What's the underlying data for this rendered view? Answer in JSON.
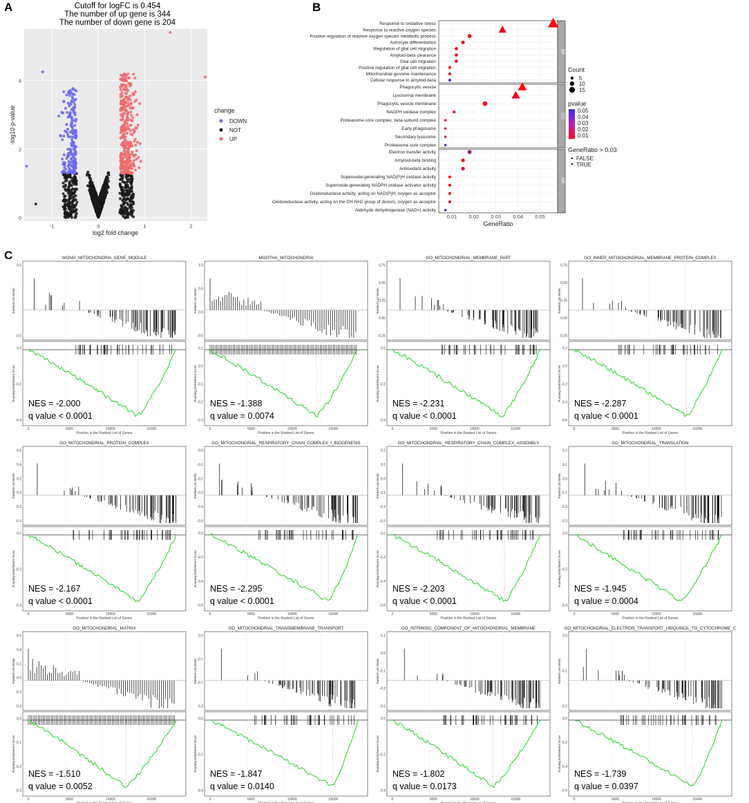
{
  "panel_labels": {
    "a": "A",
    "b": "B",
    "c": "C"
  },
  "volcano": {
    "title_lines": [
      "Cutoff for logFC is 0.454",
      "The number of up gene is 344",
      "The number of down gene is 204"
    ],
    "xlabel": "log2 fold change",
    "ylabel": "-log10 p-value",
    "legend_title": "change",
    "legend_items": [
      {
        "label": "DOWN",
        "color": "#6b6bf0"
      },
      {
        "label": "NOT",
        "color": "#222222"
      },
      {
        "label": "UP",
        "color": "#f06b6b"
      }
    ],
    "xticks": [
      "-1",
      "0",
      "1",
      "2"
    ],
    "yticks": [
      "0",
      "2",
      "4"
    ]
  },
  "dotplot": {
    "xlabel": "GeneRatio",
    "xticks": [
      "0.01",
      "0.02",
      "0.03",
      "0.04",
      "0.05"
    ],
    "facets": [
      "BP",
      "CC",
      "MF"
    ],
    "legend": {
      "count_title": "Count",
      "count_items": [
        "5",
        "10",
        "15"
      ],
      "pvalue_title": "pvalue",
      "pvalue_ticks": [
        "0.05",
        "0.04",
        "0.03",
        "0.02",
        "0.01"
      ],
      "shape_title": "GeneRatio > 0.03",
      "shape_items": [
        "FALSE",
        "TRUE"
      ]
    }
  },
  "gsea_axes": {
    "xlabel": "Position in the Ranked List of Genes",
    "ylabel_top": "Ranked List Metric",
    "ylabel_bottom": "Running Enrichment Score"
  },
  "chart_data": [
    {
      "type": "scatter",
      "title": "Cutoff for logFC is 0.454 / The number of up gene is 344 / The number of down gene is 204",
      "xlabel": "log2 fold change",
      "ylabel": "-log10 p-value",
      "xlim": [
        -1.6,
        2.35
      ],
      "ylim": [
        -0.1,
        5.5
      ],
      "series": [
        {
          "name": "DOWN",
          "color": "#6b6bf0",
          "count": 204
        },
        {
          "name": "NOT",
          "color": "#222222"
        },
        {
          "name": "UP",
          "color": "#f06b6b",
          "count": 344
        }
      ],
      "cutoff_logfc": 0.454
    },
    {
      "type": "scatter",
      "xlabel": "GeneRatio",
      "xlim": [
        0.004,
        0.058
      ],
      "facets": [
        {
          "name": "BP",
          "terms": [
            {
              "term": "Response to oxidative stress",
              "x": 0.056,
              "count": 15,
              "p": 0.005,
              "gt": true
            },
            {
              "term": "Response to reactive oxygen species",
              "x": 0.033,
              "count": 10,
              "p": 0.01,
              "gt": true
            },
            {
              "term": "Positive regulation of reactive oxygen species metabolic process",
              "x": 0.018,
              "count": 6,
              "p": 0.008,
              "gt": false
            },
            {
              "term": "Astrocyte differentiation",
              "x": 0.015,
              "count": 5,
              "p": 0.008,
              "gt": false
            },
            {
              "term": "Regulation of glial cell migration",
              "x": 0.012,
              "count": 4,
              "p": 0.008,
              "gt": false
            },
            {
              "term": "Amyloid-beta clearance",
              "x": 0.012,
              "count": 4,
              "p": 0.01,
              "gt": false
            },
            {
              "term": "Glial cell migration",
              "x": 0.012,
              "count": 4,
              "p": 0.01,
              "gt": false
            },
            {
              "term": "Positive regulation of glial cell migration",
              "x": 0.009,
              "count": 3,
              "p": 0.008,
              "gt": false
            },
            {
              "term": "Mitochondrial genome maintenance",
              "x": 0.009,
              "count": 3,
              "p": 0.01,
              "gt": false
            },
            {
              "term": "Cellular response to amyloid-beta",
              "x": 0.009,
              "count": 3,
              "p": 0.045,
              "gt": false
            }
          ]
        },
        {
          "name": "CC",
          "terms": [
            {
              "term": "Phagocytic vesicle",
              "x": 0.042,
              "count": 12,
              "p": 0.005,
              "gt": true
            },
            {
              "term": "Lysosomal membrane",
              "x": 0.039,
              "count": 11,
              "p": 0.01,
              "gt": true
            },
            {
              "term": "Phagocytic vesicle membrane",
              "x": 0.025,
              "count": 8,
              "p": 0.006,
              "gt": false
            },
            {
              "term": "NADPH oxidase complex",
              "x": 0.011,
              "count": 3,
              "p": 0.01,
              "gt": false
            },
            {
              "term": "Proteasome core complex, beta-subunit complex",
              "x": 0.007,
              "count": 2,
              "p": 0.01,
              "gt": false
            },
            {
              "term": "Early phagosome",
              "x": 0.007,
              "count": 2,
              "p": 0.012,
              "gt": false
            },
            {
              "term": "Secondary lysosome",
              "x": 0.007,
              "count": 2,
              "p": 0.02,
              "gt": false
            },
            {
              "term": "Proteasome core complex",
              "x": 0.007,
              "count": 2,
              "p": 0.045,
              "gt": false
            }
          ]
        },
        {
          "name": "MF",
          "terms": [
            {
              "term": "Electron transfer activity",
              "x": 0.018,
              "count": 6,
              "p": 0.03,
              "gt": false
            },
            {
              "term": "Amyloid-beta binding",
              "x": 0.015,
              "count": 5,
              "p": 0.008,
              "gt": false
            },
            {
              "term": "Antioxidant activity",
              "x": 0.015,
              "count": 5,
              "p": 0.015,
              "gt": false
            },
            {
              "term": "Superoxide-generating NAD(P)H oxidase activity",
              "x": 0.009,
              "count": 3,
              "p": 0.008,
              "gt": false
            },
            {
              "term": "Superoxide-generating NADPH oxidase activator activity",
              "x": 0.009,
              "count": 3,
              "p": 0.008,
              "gt": false
            },
            {
              "term": "Oxidoreductase activity, acting on NAD(P)H, oxygen as acceptor",
              "x": 0.009,
              "count": 3,
              "p": 0.01,
              "gt": false
            },
            {
              "term": "Oxidoreductase activity, acting on the CH-NH2 group of donors, oxygen as acceptor",
              "x": 0.009,
              "count": 3,
              "p": 0.012,
              "gt": false
            },
            {
              "term": "Aldehyde dehydrogenase (NAD+) activity",
              "x": 0.007,
              "count": 2,
              "p": 0.04,
              "gt": false
            }
          ]
        }
      ]
    },
    {
      "type": "line",
      "xlabel": "Position in the Ranked List of Genes",
      "ylabel": "Running Enrichment Score",
      "x_ticks": [
        "0",
        "5000",
        "10000",
        "15000"
      ],
      "panels": [
        {
          "title": "WONG_MITOCHONDRIA_GENE_MODULE",
          "nes": "NES = -2.000",
          "q": "q value < 0.0001",
          "es_min": -0.45,
          "trough": 0.74,
          "ticks_top": [
            "0.0",
            "0.5"
          ],
          "ticks_bot": [
            "-0.4",
            "-0.2",
            "0.0"
          ]
        },
        {
          "title": "MOOTHA_MITOCHONDRIA",
          "nes": "NES = -1.388",
          "q": "q value = 0.0074",
          "es_min": -0.35,
          "trough": 0.72,
          "ticks_top": [
            "-0.5",
            "0.0",
            "0.5",
            "1.0"
          ],
          "ticks_bot": [
            "-0.3",
            "-0.2",
            "-0.1",
            "0.0",
            "0.1"
          ]
        },
        {
          "title": "GO_MITOCHONDRIAL_MEMBRANE_PART",
          "nes": "NES = -2.231",
          "q": "q value < 0.0001",
          "es_min": -0.48,
          "trough": 0.74,
          "ticks_top": [
            "-0.25",
            "0.00",
            "0.25",
            "0.50",
            "0.75"
          ],
          "ticks_bot": [
            "-0.4",
            "-0.2",
            "0.0"
          ]
        },
        {
          "title": "GO_INNER_MITOCHONDRIAL_MEMBRANE_PROTEIN_COMPLEX",
          "nes": "NES = -2.287",
          "q": "q value < 0.0001",
          "es_min": -0.55,
          "trough": 0.76,
          "ticks_top": [
            "-0.25",
            "0.00",
            "0.25",
            "0.50",
            "0.75"
          ],
          "ticks_bot": [
            "-0.6",
            "-0.4",
            "-0.2",
            "0.0",
            "0.2"
          ]
        },
        {
          "title": "GO_MITOCHONDRIAL_PROTEIN_COMPLEX",
          "nes": "NES = -2.167",
          "q": "q value < 0.0001",
          "es_min": -0.52,
          "trough": 0.74,
          "ticks_top": [
            "-0.4",
            "-0.2",
            "0.0",
            "0.2",
            "0.4",
            "0.6"
          ],
          "ticks_bot": [
            "-0.4",
            "-0.2",
            "0.0"
          ]
        },
        {
          "title": "GO_MITOCHONDRIAL_RESPIRATORY_CHAIN_COMPLEX_I_BIOGENESIS",
          "nes": "NES = -2.295",
          "q": "q value < 0.0001",
          "es_min": -0.6,
          "trough": 0.8,
          "ticks_top": [
            "-0.5",
            "-0.4",
            "-0.3",
            "-0.2",
            "-0.1",
            "0.0"
          ],
          "ticks_bot": [
            "-0.6",
            "-0.4",
            "-0.2",
            "0.0"
          ]
        },
        {
          "title": "GO_MITOCHONDRIAL_RESPIRATORY_CHAIN_COMPLEX_ASSEMBLY",
          "nes": "NES = -2.203",
          "q": "q value < 0.0001",
          "es_min": -0.55,
          "trough": 0.76,
          "ticks_top": [
            "-0.3",
            "-0.2",
            "-0.1",
            "0.0",
            "0.1",
            "0.2"
          ],
          "ticks_bot": [
            "-0.6",
            "-0.4",
            "-0.2",
            "0.0"
          ]
        },
        {
          "title": "GO_MITOCHONDRIAL_TRANSLATION",
          "nes": "NES = -1.945",
          "q": "q value = 0.0004",
          "es_min": -0.45,
          "trough": 0.72,
          "ticks_top": [
            "-0.3",
            "-0.2",
            "-0.1",
            "0.0",
            "0.1",
            "0.2"
          ],
          "ticks_bot": [
            "-0.4",
            "-0.2",
            "0.0"
          ]
        },
        {
          "title": "GO_MITOCHONDRIAL_MATRIX",
          "nes": "NES = -1.510",
          "q": "q value = 0.0052",
          "es_min": -0.33,
          "trough": 0.66,
          "ticks_top": [
            "-0.4",
            "-0.2",
            "0.0",
            "0.2",
            "0.4",
            "0.6"
          ],
          "ticks_bot": [
            "-0.3",
            "-0.2",
            "-0.1",
            "0.0"
          ]
        },
        {
          "title": "GO_MITOCHONDRIAL_TRANSMEMBRANE_TRANSPORT",
          "nes": "NES = -1.847",
          "q": "q value = 0.0140",
          "es_min": -0.55,
          "trough": 0.83,
          "ticks_top": [
            "-0.3",
            "-0.2",
            "-0.1",
            "0.0"
          ],
          "ticks_bot": [
            "-0.4",
            "-0.2",
            "0.0"
          ]
        },
        {
          "title": "GO_INTRINSIC_COMPONENT_OF_MITOCHONDRIAL_MEMBRANE",
          "nes": "NES = -1.802",
          "q": "q value = 0.0173",
          "es_min": -0.58,
          "trough": 0.68,
          "ticks_top": [
            "-0.3",
            "-0.2",
            "-0.1",
            "0.0",
            "0.1"
          ],
          "ticks_bot": [
            "-0.4",
            "-0.2",
            "0.0"
          ]
        },
        {
          "title": "GO_MITOCHONDRIAL_ELECTRON_TRANSPORT_UBIQUINOL_TO_CYTOCHROME_C",
          "nes": "NES = -1.739",
          "q": "q value = 0.0397",
          "es_min": -0.66,
          "trough": 0.8,
          "ticks_top": [
            "-0.2",
            "-0.1",
            "0.0"
          ],
          "ticks_bot": [
            "-0.6",
            "-0.4",
            "-0.2",
            "0.0"
          ]
        }
      ]
    }
  ]
}
